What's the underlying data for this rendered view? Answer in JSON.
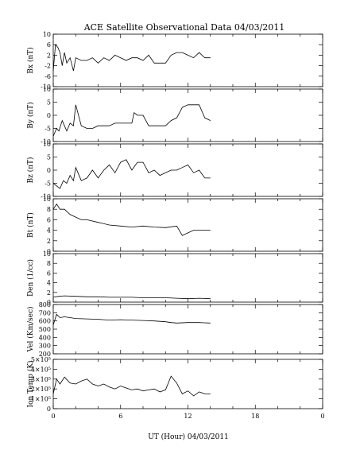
{
  "chart_data": {
    "type": "line",
    "title": "ACE Satellite Observational Data   04/03/2011",
    "xlabel": "UT (Hour)   04/03/2011",
    "xlim": [
      0,
      24
    ],
    "x_ticks": [
      "0",
      "6",
      "12",
      "18",
      "0"
    ],
    "x_tick_values": [
      0,
      6,
      12,
      18,
      24
    ],
    "grid": false,
    "panels": [
      {
        "ylabel": "Bx (nT)",
        "ylim": [
          -10,
          10
        ],
        "y_ticks": [
          "10",
          "6",
          "2",
          "-2",
          "-6",
          "-10"
        ],
        "y_tick_values": [
          10,
          6,
          2,
          -2,
          -6,
          -10
        ],
        "series": [
          {
            "x": [
              0,
              0.2,
              0.4,
              0.6,
              0.8,
              1,
              1.2,
              1.5,
              1.8,
              2,
              2.5,
              3,
              3.5,
              4,
              4.5,
              5,
              5.5,
              6,
              6.5,
              7,
              7.5,
              8,
              8.5,
              9,
              9.5,
              10,
              10.5,
              11,
              11.5,
              12,
              12.5,
              13,
              13.5,
              14
            ],
            "y": [
              -4,
              6,
              5,
              3,
              -2,
              3,
              -1,
              1,
              -4,
              1,
              0,
              0,
              1,
              -1,
              1,
              0,
              2,
              1,
              0,
              1,
              1,
              0,
              2,
              -1,
              -1,
              -1,
              2,
              3,
              3,
              2,
              1,
              3,
              1,
              1
            ]
          }
        ]
      },
      {
        "ylabel": "By (nT)",
        "ylim": [
          -10,
          10
        ],
        "y_ticks": [
          "10",
          "5",
          "0",
          "-5",
          "-10"
        ],
        "y_tick_values": [
          10,
          5,
          0,
          -5,
          -10
        ],
        "series": [
          {
            "x": [
              0,
              0.3,
              0.5,
              0.8,
              1,
              1.2,
              1.5,
              1.8,
              2,
              2.5,
              3,
              3.5,
              4,
              4.5,
              5,
              5.5,
              6,
              6.5,
              7,
              7.2,
              7.5,
              8,
              8.5,
              9,
              9.5,
              10,
              10.5,
              11,
              11.5,
              12,
              12.5,
              13,
              13.5,
              14
            ],
            "y": [
              -8,
              -5,
              -6,
              -2,
              -4,
              -6,
              -3,
              -4,
              4,
              -4,
              -5,
              -5,
              -4,
              -4,
              -4,
              -3,
              -3,
              -3,
              -3,
              1,
              0,
              0,
              -4,
              -4,
              -4,
              -4,
              -2,
              -1,
              3,
              4,
              4,
              4,
              -1,
              -2
            ]
          }
        ]
      },
      {
        "ylabel": "Bz (nT)",
        "ylim": [
          -10,
          10
        ],
        "y_ticks": [
          "10",
          "5",
          "0",
          "-5",
          "-10"
        ],
        "y_tick_values": [
          10,
          5,
          0,
          -5,
          -10
        ],
        "series": [
          {
            "x": [
              0,
              0.3,
              0.6,
              0.9,
              1.2,
              1.5,
              1.8,
              2,
              2.5,
              3,
              3.5,
              4,
              4.5,
              5,
              5.5,
              6,
              6.5,
              7,
              7.5,
              8,
              8.5,
              9,
              9.5,
              10,
              10.5,
              11,
              11.5,
              12,
              12.5,
              13,
              13.5,
              14
            ],
            "y": [
              -5,
              -6,
              -7,
              -4,
              -5,
              -2,
              -4,
              1,
              -4,
              -3,
              0,
              -3,
              0,
              2,
              -1,
              3,
              4,
              0,
              3,
              3,
              -1,
              0,
              -2,
              -1,
              0,
              0,
              1,
              2,
              -1,
              0,
              -3,
              -3
            ]
          }
        ]
      },
      {
        "ylabel": "Bt (nT)",
        "ylim": [
          0,
          10
        ],
        "y_ticks": [
          "10",
          "8",
          "6",
          "4",
          "2",
          "0"
        ],
        "y_tick_values": [
          10,
          8,
          6,
          4,
          2,
          0
        ],
        "series": [
          {
            "x": [
              0,
              0.3,
              0.6,
              1,
              1.5,
              2,
              2.5,
              3,
              4,
              5,
              6,
              7,
              8,
              9,
              10,
              11,
              11.5,
              12,
              12.5,
              13,
              14
            ],
            "y": [
              8,
              9,
              8,
              8,
              7,
              6.5,
              6,
              6,
              5.5,
              5,
              4.8,
              4.6,
              4.8,
              4.6,
              4.5,
              4.8,
              3,
              3.5,
              4,
              4,
              4
            ]
          }
        ]
      },
      {
        "ylabel": "Den (1/cc)",
        "ylim": [
          0,
          10
        ],
        "y_ticks": [
          "10",
          "8",
          "6",
          "4",
          "2",
          "0"
        ],
        "y_tick_values": [
          10,
          8,
          6,
          4,
          2,
          0
        ],
        "series": [
          {
            "x": [
              0,
              0.5,
              1,
              2,
              3,
              4,
              5,
              6,
              7,
              8,
              9,
              10,
              11,
              12,
              13,
              14
            ],
            "y": [
              1,
              1.2,
              1.3,
              1.2,
              1.1,
              1.1,
              1,
              1,
              1,
              0.9,
              0.9,
              0.9,
              0.8,
              0.7,
              0.8,
              0.7
            ]
          }
        ]
      },
      {
        "ylabel": "Vel (Km/sec)",
        "ylim": [
          200,
          800
        ],
        "y_ticks": [
          "800",
          "700",
          "600",
          "500",
          "400",
          "300",
          "200"
        ],
        "y_tick_values": [
          800,
          700,
          600,
          500,
          400,
          300,
          200
        ],
        "series": [
          {
            "x": [
              0,
              0.3,
              0.6,
              1,
              1.5,
              2,
              3,
              4,
              5,
              6,
              7,
              8,
              9,
              10,
              10.5,
              11,
              12,
              13,
              14
            ],
            "y": [
              550,
              680,
              640,
              650,
              640,
              630,
              625,
              620,
              610,
              615,
              610,
              605,
              600,
              590,
              580,
              575,
              580,
              580,
              575
            ]
          }
        ]
      },
      {
        "ylabel": "Ion Temp (K)",
        "ylim": [
          0,
          500000
        ],
        "y_ticks": [
          "5×10⁵",
          "4×10⁵",
          "3×10⁵",
          "2×10⁵",
          "1×10⁵",
          "0"
        ],
        "y_tick_values": [
          500000,
          400000,
          300000,
          200000,
          100000,
          0
        ],
        "series": [
          {
            "x": [
              0,
              0.3,
              0.6,
              1,
              1.5,
              2,
              2.5,
              3,
              3.5,
              4,
              4.5,
              5,
              5.5,
              6,
              6.5,
              7,
              7.5,
              8,
              8.5,
              9,
              9.5,
              10,
              10.5,
              11,
              11.5,
              12,
              12.5,
              13,
              13.5,
              14
            ],
            "y": [
              150000,
              300000,
              250000,
              320000,
              260000,
              250000,
              280000,
              300000,
              250000,
              230000,
              250000,
              220000,
              200000,
              230000,
              210000,
              190000,
              200000,
              180000,
              190000,
              200000,
              170000,
              190000,
              330000,
              260000,
              150000,
              180000,
              130000,
              170000,
              150000,
              150000
            ]
          }
        ]
      }
    ]
  }
}
